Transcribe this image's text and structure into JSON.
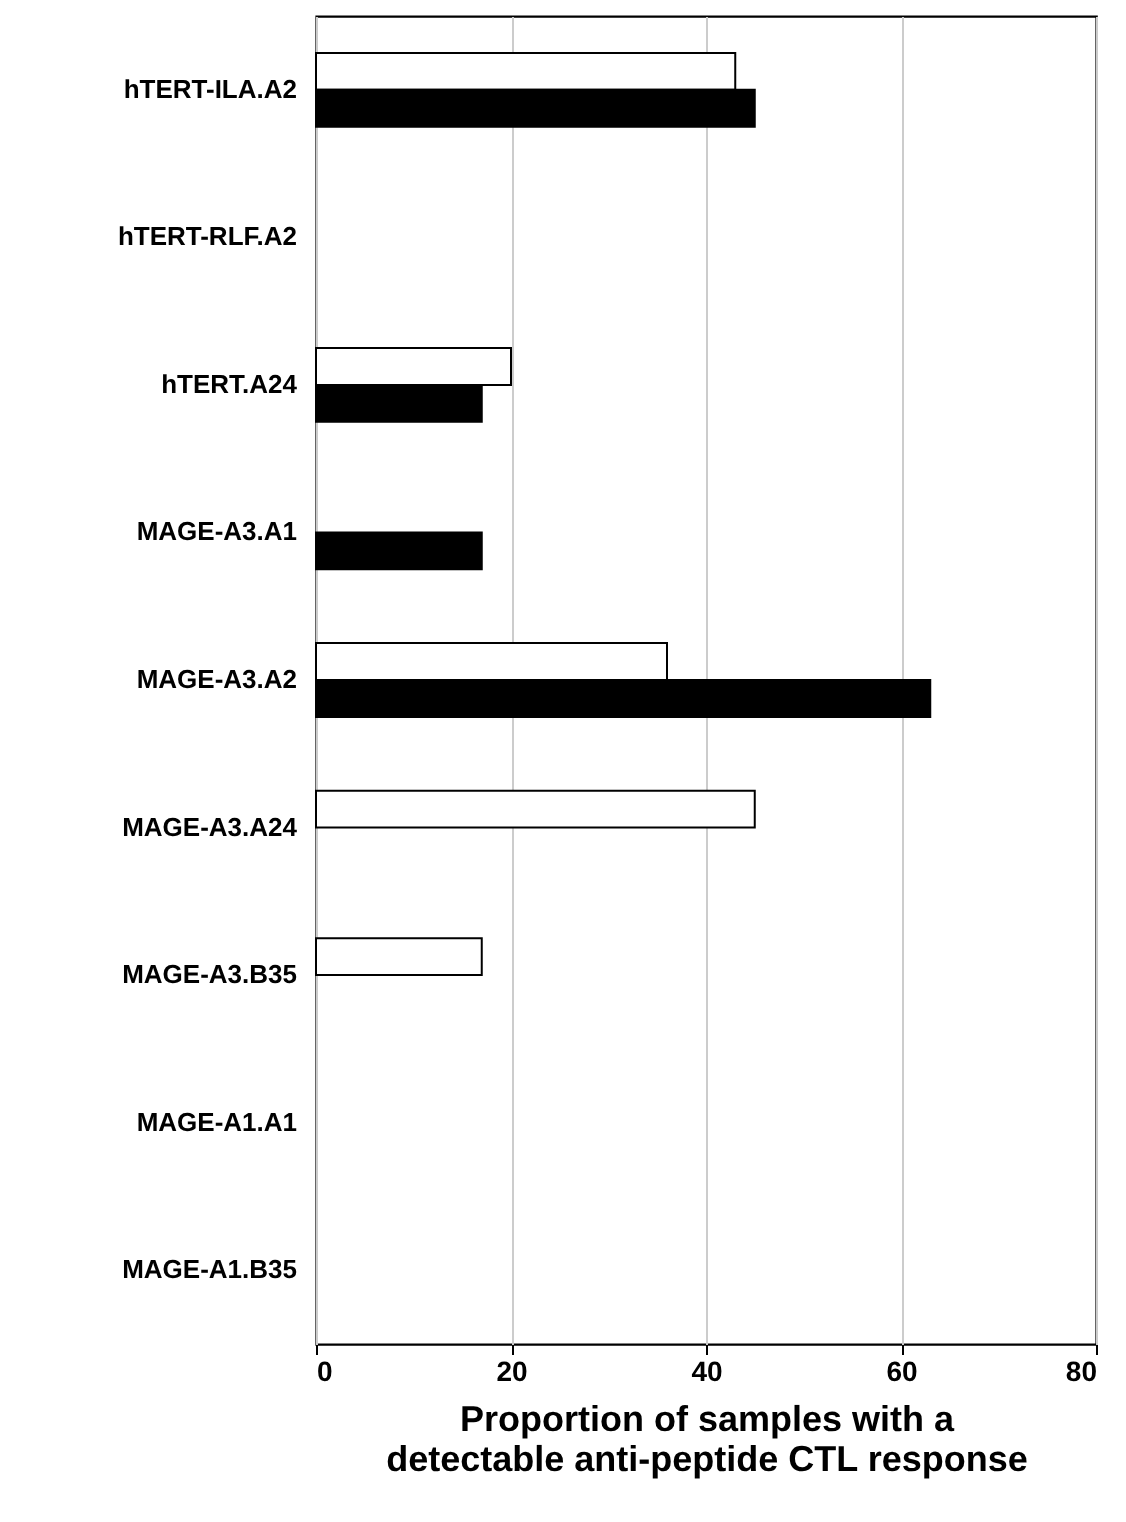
{
  "chart_data": {
    "type": "bar",
    "orientation": "horizontal",
    "xlabel": "Proportion of samples with a detectable anti-peptide CTL response",
    "categories": [
      "hTERT-ILA.A2",
      "hTERT-RLF.A2",
      "hTERT.A24",
      "MAGE-A3.A1",
      "MAGE-A3.A2",
      "MAGE-A3.A24",
      "MAGE-A3.B35",
      "MAGE-A1.A1",
      "MAGE-A1.B35"
    ],
    "series": [
      {
        "color": "#ffffff",
        "values": [
          43,
          null,
          20,
          null,
          36,
          45,
          17,
          null,
          null
        ]
      },
      {
        "color": "#000000",
        "values": [
          45,
          null,
          17,
          17,
          63,
          null,
          null,
          null,
          null
        ]
      }
    ],
    "xlim": [
      0,
      80
    ],
    "xticks": [
      0,
      20,
      40,
      60,
      80
    ],
    "grid": "x"
  }
}
